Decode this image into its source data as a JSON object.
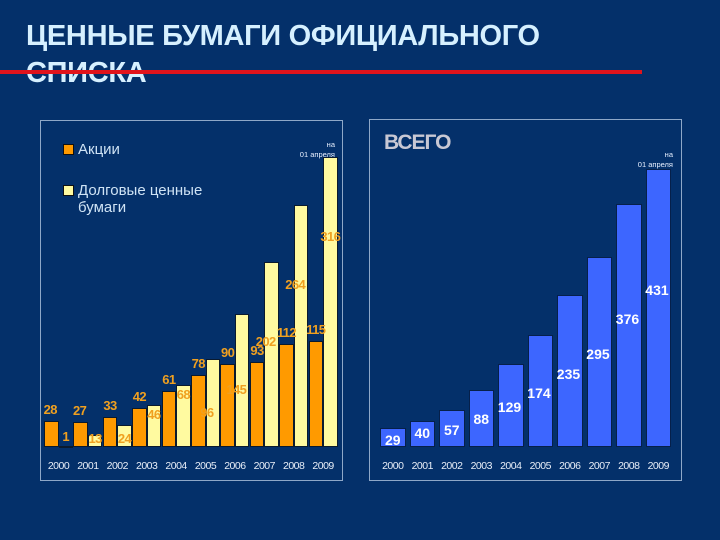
{
  "slide": {
    "title_line1": "ЦЕННЫЕ БУМАГИ ОФИЦИАЛЬНОГО",
    "title_line2": "СПИСКА"
  },
  "left_chart": {
    "legend": [
      {
        "label": "Акции",
        "color": "#ff9a00"
      },
      {
        "label": "Долговые ценные бумаги",
        "color": "#fffaa0"
      }
    ],
    "note_line1": "на",
    "note_line2": "01 апреля"
  },
  "right_chart": {
    "title": "ВСЕГО",
    "note_line1": "на",
    "note_line2": "01 апреля"
  },
  "chart_data": [
    {
      "type": "bar",
      "title": "",
      "categories": [
        "2000",
        "2001",
        "2002",
        "2003",
        "2004",
        "2005",
        "2006",
        "2007",
        "2008",
        "2009"
      ],
      "series": [
        {
          "name": "Акции",
          "color": "#ff9a00",
          "values": [
            28,
            27,
            33,
            42,
            61,
            78,
            90,
            93,
            112,
            115
          ]
        },
        {
          "name": "Долговые ценные бумаги",
          "color": "#fffaa0",
          "values": [
            1,
            13,
            24,
            46,
            68,
            96,
            145,
            202,
            264,
            316
          ]
        }
      ],
      "annotations": [
        "на 01 апреля (2009)"
      ],
      "legend_position": "top-left",
      "grid": false,
      "xlabel": "",
      "ylabel": ""
    },
    {
      "type": "bar",
      "title": "ВСЕГО",
      "categories": [
        "2000",
        "2001",
        "2002",
        "2003",
        "2004",
        "2005",
        "2006",
        "2007",
        "2008",
        "2009"
      ],
      "series": [
        {
          "name": "Всего",
          "color": "#3d66ff",
          "values": [
            29,
            40,
            57,
            88,
            129,
            174,
            235,
            295,
            376,
            431
          ]
        }
      ],
      "annotations": [
        "на 01 апреля (2009)"
      ],
      "grid": false,
      "xlabel": "",
      "ylabel": ""
    }
  ]
}
